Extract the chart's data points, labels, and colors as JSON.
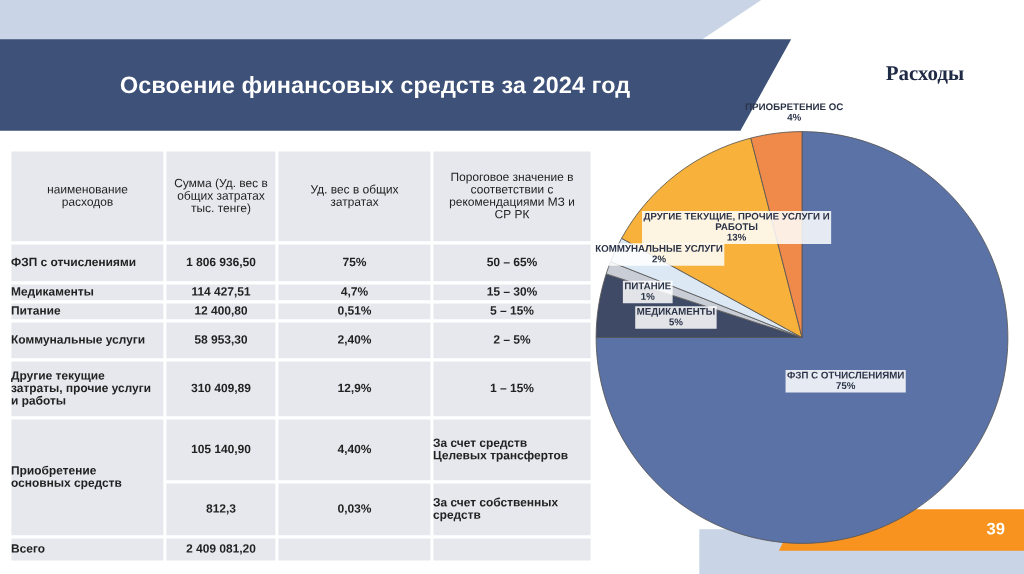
{
  "chart_data": [
    {
      "type": "other",
      "title": "Освоение финансовых средств за 2024 год",
      "annotations": [
        "наименование\nрасходов",
        "Сумма (Уд. вес в\nобщих затратах\nтыс. тенге)",
        "Уд. вес в общих\nзатратах",
        "Пороговое значение в\nсоответствии с\nрекомендациями МЗ и\nСР РК",
        "ФЗП с отчислениями",
        "1 806 936,50",
        "75%",
        "50 – 65%",
        "Медикаменты",
        "114 427,51",
        "4,7%",
        "15 – 30%",
        "Питание",
        "12 400,80",
        "0,51%",
        "5 – 15%",
        "Коммунальные услуги",
        "58 953,30",
        "2,40%",
        "2 – 5%",
        "Другие текущие\nзатраты, прочие услуги\nи работы",
        "310 409,89",
        "12,9%",
        "1 – 15%",
        "Приобретение\nосновных средств",
        "105 140,90",
        "4,40%",
        "За счет средств\nЦелевых трансфертов",
        "812,3",
        "0,03%",
        "За счет собственных\nсредств",
        "Всего",
        "2 409 081,20"
      ]
    },
    {
      "type": "pie",
      "title": "Расходы",
      "categories": [
        "ФЗП С ОТЧИСЛЕНИЯМИ",
        "МЕДИКАМЕНТЫ",
        "ПИТАНИЕ",
        "КОММУНАЛЬНЫЕ УСЛУГИ",
        "ДРУГИЕ ТЕКУЩИЕ, ПРОЧИЕ УСЛУГИ И\nРАБОТЫ",
        "ПРИОБРЕТЕНИЕ ОС"
      ],
      "values": [
        75,
        5,
        1,
        2,
        13,
        4
      ],
      "value_labels": [
        "75%",
        "5%",
        "1%",
        "2%",
        "13%",
        "4%"
      ],
      "colors": [
        "#5b72a6",
        "#3f4b66",
        "#c9cdd6",
        "#dce8f4",
        "#f8b23c",
        "#ef8a4a"
      ],
      "legend": false,
      "annotations": [
        "39"
      ]
    }
  ]
}
